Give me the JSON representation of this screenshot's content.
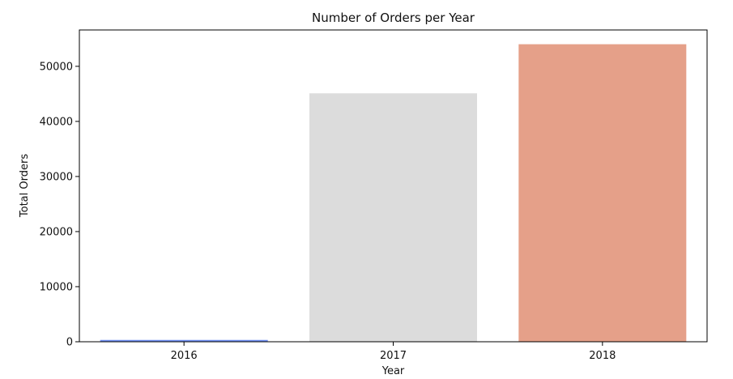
{
  "chart_data": {
    "type": "bar",
    "title": "Number of Orders per Year",
    "xlabel": "Year",
    "ylabel": "Total Orders",
    "categories": [
      "2016",
      "2017",
      "2018"
    ],
    "values": [
      329,
      45101,
      54011
    ],
    "ylim": [
      0,
      56600
    ],
    "yticks": [
      0,
      10000,
      20000,
      30000,
      40000,
      50000
    ],
    "ytick_labels": [
      "0",
      "10000",
      "20000",
      "30000",
      "40000",
      "50000"
    ],
    "colors": [
      "#6f8ff2",
      "#dcdcdc",
      "#e5a089"
    ],
    "grid": false,
    "legend": "none"
  }
}
